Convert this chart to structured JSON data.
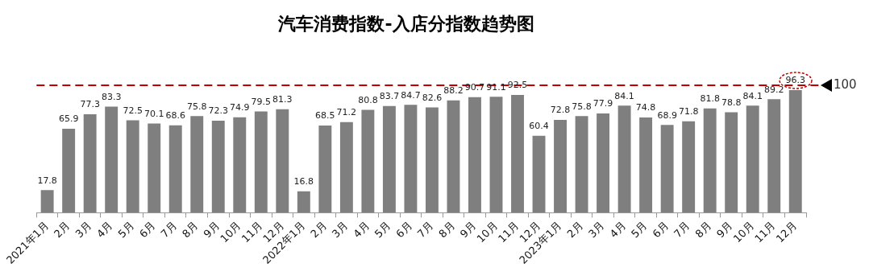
{
  "chart_data": {
    "type": "bar",
    "title": "汽车消费指数-入店分指数趋势图",
    "categories": [
      "2021年1月",
      "2月",
      "3月",
      "4月",
      "5月",
      "6月",
      "7月",
      "8月",
      "9月",
      "10月",
      "11月",
      "12月",
      "2022年1月",
      "2月",
      "3月",
      "4月",
      "5月",
      "6月",
      "7月",
      "8月",
      "9月",
      "10月",
      "11月",
      "12月",
      "2023年1月",
      "2月",
      "3月",
      "4月",
      "5月",
      "6月",
      "7月",
      "8月",
      "9月",
      "10月",
      "11月",
      "12月"
    ],
    "values": [
      17.8,
      65.9,
      77.3,
      83.3,
      72.5,
      70.1,
      68.6,
      75.8,
      72.3,
      74.9,
      79.5,
      81.3,
      16.8,
      68.5,
      71.2,
      80.8,
      83.7,
      84.7,
      82.6,
      88.2,
      90.7,
      91.1,
      92.5,
      60.4,
      72.8,
      75.8,
      77.9,
      84.1,
      74.8,
      68.9,
      71.8,
      81.8,
      78.8,
      84.1,
      89.2,
      96.3
    ],
    "color": "#7f7f7f",
    "data_labels": true,
    "grid": false,
    "legend": false,
    "ref_lines": [
      {
        "axis": "y",
        "value": 100,
        "label": "100",
        "color": "#c00000",
        "line_style": "dashed"
      }
    ]
  }
}
